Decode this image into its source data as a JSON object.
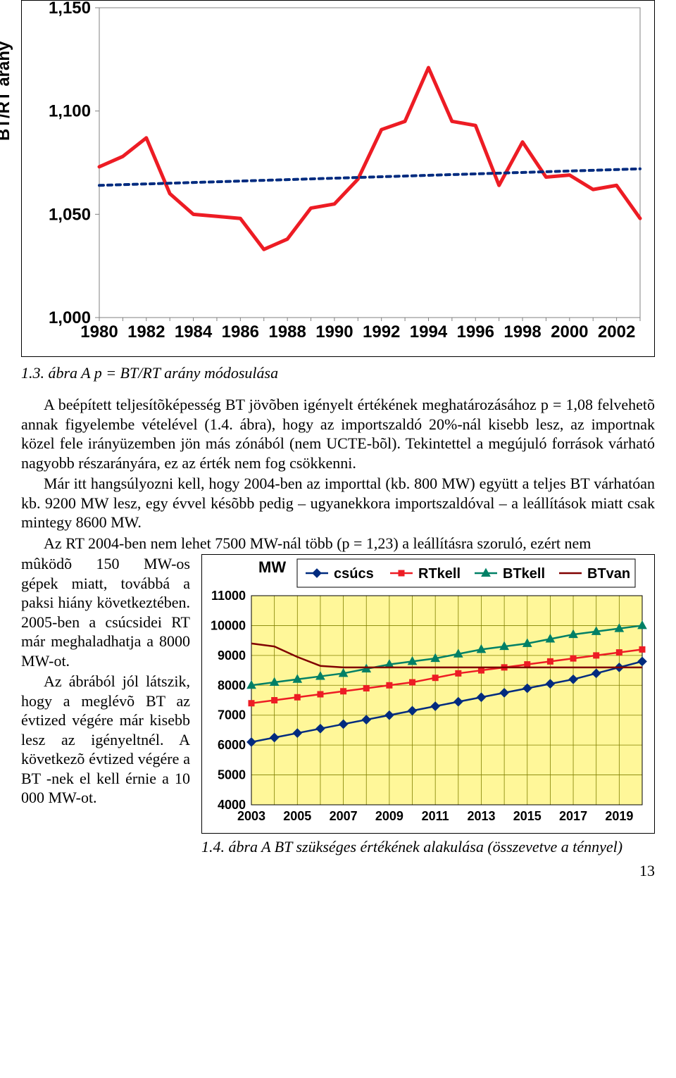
{
  "chart1": {
    "type": "line",
    "ylabel": "BT/RT arány",
    "label_fontsize": 24,
    "ylim": [
      1.0,
      1.15
    ],
    "ytick_step": 0.05,
    "yticks": [
      "1,000",
      "1,050",
      "1,100",
      "1,150"
    ],
    "xticks": [
      "1980",
      "1982",
      "1984",
      "1986",
      "1988",
      "1990",
      "1992",
      "1994",
      "1996",
      "1998",
      "2000",
      "2002"
    ],
    "xtick_step": 2,
    "x_start": 1980,
    "x_end": 2003,
    "background_color": "#ffffff",
    "plot_border_color": "#808080",
    "tick_color": "#808080",
    "axis_font": "Arial",
    "axis_fontsize": 24,
    "series": [
      {
        "name": "ratio",
        "color": "#ed1c24",
        "width": 5,
        "dash": "none",
        "x": [
          1980,
          1981,
          1982,
          1983,
          1984,
          1985,
          1986,
          1987,
          1988,
          1989,
          1990,
          1991,
          1992,
          1993,
          1994,
          1995,
          1996,
          1997,
          1998,
          1999,
          2000,
          2001,
          2002,
          2003
        ],
        "y": [
          1.073,
          1.078,
          1.087,
          1.06,
          1.05,
          1.049,
          1.048,
          1.033,
          1.038,
          1.053,
          1.055,
          1.067,
          1.091,
          1.095,
          1.121,
          1.095,
          1.093,
          1.064,
          1.085,
          1.068,
          1.069,
          1.062,
          1.064,
          1.048
        ]
      },
      {
        "name": "trend",
        "color": "#002b7f",
        "width": 4,
        "dash": "6,6",
        "x": [
          1980,
          2003
        ],
        "y": [
          1.064,
          1.072
        ]
      }
    ]
  },
  "caption1": "1.3. ábra  A p =  BT/RT arány módosulása",
  "para1": "A beépített teljesítõképesség BT  jövõben igényelt értékének meghatározásához p = 1,08 felvehetõ annak figyelembe vételével (1.4. ábra), hogy az importszaldó 20%-nál kisebb lesz, az importnak közel fele irányüzemben jön más zónából (nem UCTE-bõl). Tekintettel a megújuló források várható nagyobb részarányára, ez az érték nem fog csökkenni.",
  "para2": "Már itt hangsúlyozni kell, hogy 2004-ben az importtal (kb. 800 MW) együtt a teljes BT  várhatóan kb. 9200 MW lesz, egy évvel késõbb pedig – ugyanekkora importszaldóval – a leállítások miatt csak mintegy 8600 MW.",
  "para3a": "Az RT 2004-ben nem lehet 7500 MW-nál több (p = 1,23) a leállításra szoruló, ezért nem",
  "para3b": "mûködõ 150 MW-os gépek miatt, továbbá a paksi hiány következtében. 2005-ben a csúcsidei RT már meghaladhatja a 8000 MW-ot.",
  "para4": "Az ábrából jól látszik, hogy a meglévõ BT  az évtized végére már kisebb lesz az igényeltnél. A következõ évtized végére a BT -nek el kell érnie a 10 000 MW-ot.",
  "chart2": {
    "type": "line",
    "ylabel": "MW",
    "label_fontsize": 22,
    "ylim": [
      4000,
      11000
    ],
    "ytick_step": 1000,
    "yticks": [
      "4000",
      "5000",
      "6000",
      "7000",
      "8000",
      "9000",
      "10000",
      "11000"
    ],
    "xticks": [
      "2003",
      "2005",
      "2007",
      "2009",
      "2011",
      "2013",
      "2015",
      "2017",
      "2019"
    ],
    "x_start": 2003,
    "x_end": 2020,
    "background_color": "#fff799",
    "grid_color": "#808000",
    "plot_border_color": "#000000",
    "axis_font": "Arial",
    "axis_fontsize": 18,
    "legend_font": "Arial",
    "legend_fontsize": 20,
    "legend_pos": "top",
    "series": [
      {
        "name": "csucs",
        "label": "csúcs",
        "color": "#002b7f",
        "width": 2.5,
        "marker": "diamond",
        "marker_size": 8,
        "x": [
          2003,
          2004,
          2005,
          2006,
          2007,
          2008,
          2009,
          2010,
          2011,
          2012,
          2013,
          2014,
          2015,
          2016,
          2017,
          2018,
          2019,
          2020
        ],
        "y": [
          6100,
          6250,
          6400,
          6550,
          6700,
          6850,
          7000,
          7150,
          7300,
          7450,
          7600,
          7750,
          7900,
          8050,
          8200,
          8400,
          8600,
          8800
        ]
      },
      {
        "name": "RTkell",
        "label": "RTkell",
        "color": "#ed1c24",
        "width": 2.5,
        "marker": "square",
        "marker_size": 8,
        "x": [
          2003,
          2004,
          2005,
          2006,
          2007,
          2008,
          2009,
          2010,
          2011,
          2012,
          2013,
          2014,
          2015,
          2016,
          2017,
          2018,
          2019,
          2020
        ],
        "y": [
          7400,
          7500,
          7600,
          7700,
          7800,
          7900,
          8000,
          8100,
          8250,
          8400,
          8500,
          8600,
          8700,
          8800,
          8900,
          9000,
          9100,
          9200
        ]
      },
      {
        "name": "BTkell",
        "label": "BTkell",
        "color": "#008066",
        "width": 2.5,
        "marker": "triangle",
        "marker_size": 9,
        "x": [
          2003,
          2004,
          2005,
          2006,
          2007,
          2008,
          2009,
          2010,
          2011,
          2012,
          2013,
          2014,
          2015,
          2016,
          2017,
          2018,
          2019,
          2020
        ],
        "y": [
          8000,
          8100,
          8200,
          8300,
          8400,
          8550,
          8700,
          8800,
          8900,
          9050,
          9200,
          9300,
          9400,
          9550,
          9700,
          9800,
          9900,
          10000
        ]
      },
      {
        "name": "BTvan",
        "label": "BTvan",
        "color": "#800000",
        "width": 2.5,
        "marker": "none",
        "x": [
          2003,
          2004,
          2005,
          2006,
          2007,
          2008,
          2009,
          2010,
          2011,
          2012,
          2013,
          2014,
          2015,
          2016,
          2017,
          2018,
          2019,
          2020
        ],
        "y": [
          9400,
          9300,
          8950,
          8650,
          8600,
          8600,
          8600,
          8600,
          8600,
          8600,
          8600,
          8600,
          8600,
          8600,
          8600,
          8600,
          8600,
          8600
        ]
      }
    ]
  },
  "caption2": "1.4. ábra   A BT szükséges értékének alakulása (összevetve a ténnyel)",
  "pagenum": "13"
}
